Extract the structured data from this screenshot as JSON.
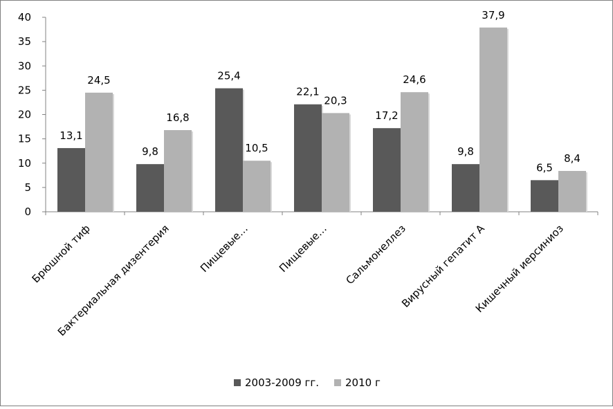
{
  "chart_data": {
    "type": "bar",
    "title": "",
    "xlabel": "",
    "ylabel": "",
    "ylim": [
      0,
      40
    ],
    "yticks": [
      0,
      5,
      10,
      15,
      20,
      25,
      30,
      35,
      40
    ],
    "grid": false,
    "legend_position": "bottom",
    "categories": [
      "Брюшной тиф",
      "Бактериальная дизентерия",
      "Пищевые…",
      "Пищевые…",
      "Сальмонеллез",
      "Вирусный гепатит А",
      "Кишечный иерсиниоз"
    ],
    "series": [
      {
        "name": "2003-2009 гг.",
        "color": "#595959",
        "values": [
          13.1,
          9.8,
          25.4,
          22.1,
          17.2,
          9.8,
          6.5
        ],
        "labels": [
          "13,1",
          "9,8",
          "25,4",
          "22,1",
          "17,2",
          "9,8",
          "6,5"
        ]
      },
      {
        "name": "2010 г",
        "color": "#b2b2b2",
        "values": [
          24.5,
          16.8,
          10.5,
          20.3,
          24.6,
          37.9,
          8.4
        ],
        "labels": [
          "24,5",
          "16,8",
          "10,5",
          "20,3",
          "24,6",
          "37,9",
          "8,4"
        ]
      }
    ]
  }
}
